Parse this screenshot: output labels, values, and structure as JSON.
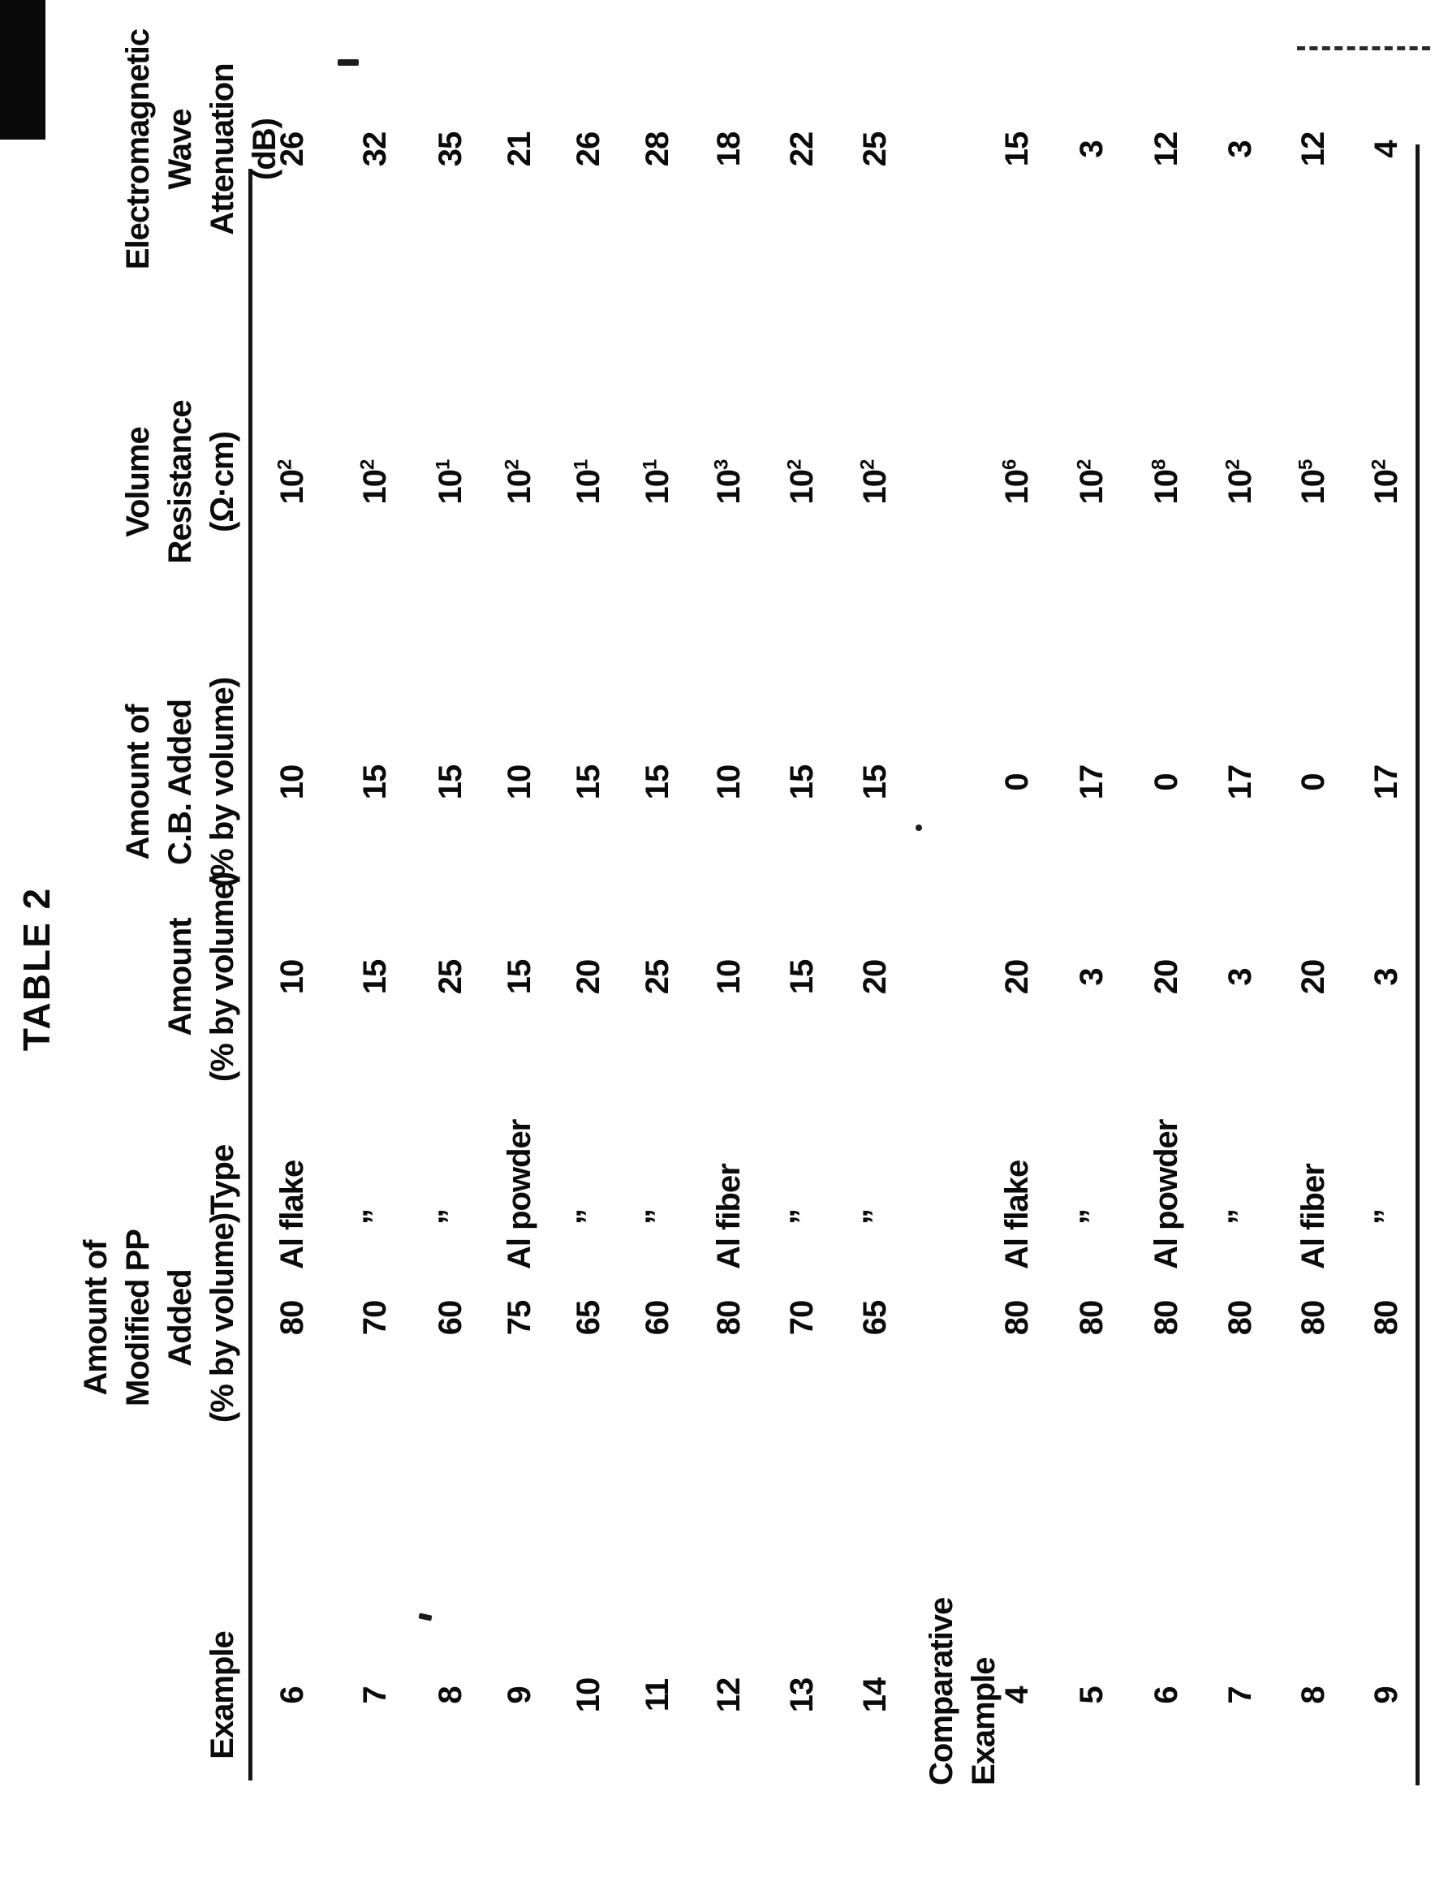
{
  "title": "TABLE 2",
  "columns": [
    {
      "key": "example",
      "header_lines": [
        "Example"
      ]
    },
    {
      "key": "pp",
      "header_lines": [
        "Amount of",
        "Modified PP",
        "Added",
        "(% by volume)"
      ]
    },
    {
      "key": "type",
      "header_lines": [
        "Type"
      ]
    },
    {
      "key": "amount",
      "header_lines": [
        "Amount",
        "(% by volume)"
      ]
    },
    {
      "key": "cb",
      "header_lines": [
        "Amount of",
        "C.B. Added",
        "(% by volume)"
      ]
    },
    {
      "key": "vr",
      "header_lines": [
        "Volume",
        "Resistance",
        "(Ω·cm)"
      ]
    },
    {
      "key": "ewa",
      "header_lines": [
        "Electromagnetic",
        "Wave Attenuation",
        "(dB)"
      ]
    }
  ],
  "sections": [
    {
      "label_lines": [],
      "rows": [
        {
          "example": "6",
          "pp": "80",
          "type": "Al flake",
          "amount": "10",
          "cb": "10",
          "vr": "10^2",
          "ewa": "26"
        },
        {
          "example": "7",
          "pp": "70",
          "type": "”",
          "amount": "15",
          "cb": "15",
          "vr": "10^2",
          "ewa": "32"
        },
        {
          "example": "8",
          "pp": "60",
          "type": "”",
          "amount": "25",
          "cb": "15",
          "vr": "10^1",
          "ewa": "35"
        },
        {
          "example": "9",
          "pp": "75",
          "type": "Al powder",
          "amount": "15",
          "cb": "10",
          "vr": "10^2",
          "ewa": "21"
        },
        {
          "example": "10",
          "pp": "65",
          "type": "”",
          "amount": "20",
          "cb": "15",
          "vr": "10^1",
          "ewa": "26"
        },
        {
          "example": "11",
          "pp": "60",
          "type": "”",
          "amount": "25",
          "cb": "15",
          "vr": "10^1",
          "ewa": "28"
        },
        {
          "example": "12",
          "pp": "80",
          "type": "Al fiber",
          "amount": "10",
          "cb": "10",
          "vr": "10^3",
          "ewa": "18"
        },
        {
          "example": "13",
          "pp": "70",
          "type": "”",
          "amount": "15",
          "cb": "15",
          "vr": "10^2",
          "ewa": "22"
        },
        {
          "example": "14",
          "pp": "65",
          "type": "”",
          "amount": "20",
          "cb": "15",
          "vr": "10^2",
          "ewa": "25"
        }
      ]
    },
    {
      "label_lines": [
        "Comparative",
        "Example"
      ],
      "rows": [
        {
          "example": "4",
          "pp": "80",
          "type": "Al flake",
          "amount": "20",
          "cb": "0",
          "vr": "10^6",
          "ewa": "15"
        },
        {
          "example": "5",
          "pp": "80",
          "type": "”",
          "amount": "3",
          "cb": "17",
          "vr": "10^2",
          "ewa": "3"
        },
        {
          "example": "6",
          "pp": "80",
          "type": "Al powder",
          "amount": "20",
          "cb": "0",
          "vr": "10^8",
          "ewa": "12"
        },
        {
          "example": "7",
          "pp": "80",
          "type": "”",
          "amount": "3",
          "cb": "17",
          "vr": "10^2",
          "ewa": "3"
        },
        {
          "example": "8",
          "pp": "80",
          "type": "Al fiber",
          "amount": "20",
          "cb": "0",
          "vr": "10^5",
          "ewa": "12"
        },
        {
          "example": "9",
          "pp": "80",
          "type": "”",
          "amount": "3",
          "cb": "17",
          "vr": "10^2",
          "ewa": "4"
        }
      ]
    }
  ]
}
